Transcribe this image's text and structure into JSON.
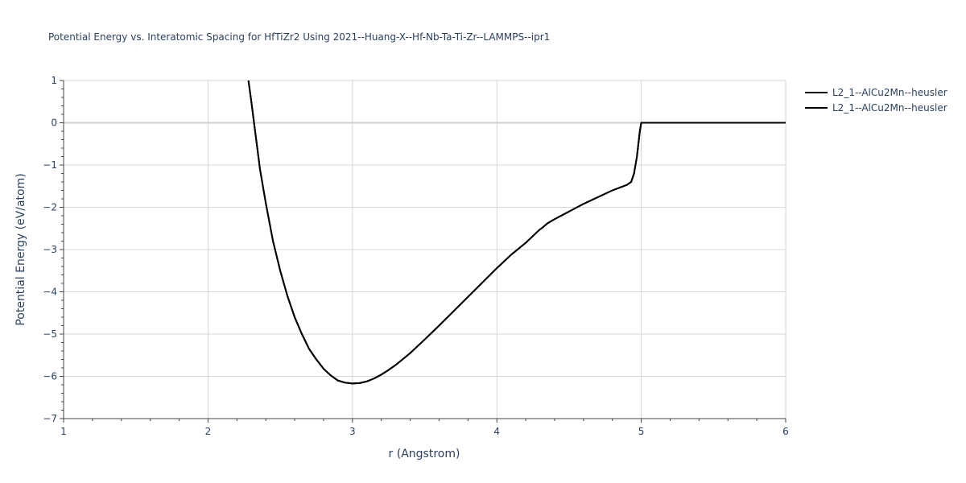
{
  "chart_data": {
    "type": "line",
    "title": "Potential Energy vs. Interatomic Spacing for HfTiZr2 Using 2021--Huang-X--Hf-Nb-Ta-Ti-Zr--LAMMPS--ipr1",
    "xlabel": "r (Angstrom)",
    "ylabel": "Potential Energy (eV/atom)",
    "xlim": [
      1,
      6
    ],
    "ylim": [
      -7,
      1
    ],
    "xticks": [
      1,
      2,
      3,
      4,
      5,
      6
    ],
    "yticks": [
      1,
      0,
      -1,
      -2,
      -3,
      -4,
      -5,
      -6,
      -7
    ],
    "ytick_labels": [
      "1",
      "0",
      "−1",
      "−2",
      "−3",
      "−4",
      "−5",
      "−6",
      "−7"
    ],
    "grid": true,
    "legend_position": "top-right",
    "series": [
      {
        "name": "L2_1--AlCu2Mn--heusler",
        "color": "#000000",
        "x": [
          2.28,
          2.3,
          2.33,
          2.36,
          2.4,
          2.45,
          2.5,
          2.55,
          2.6,
          2.65,
          2.7,
          2.75,
          2.8,
          2.85,
          2.9,
          2.95,
          3.0,
          3.05,
          3.1,
          3.15,
          3.2,
          3.25,
          3.3,
          3.35,
          3.4,
          3.5,
          3.6,
          3.7,
          3.8,
          3.9,
          4.0,
          4.1,
          4.2,
          4.25,
          4.28,
          4.3,
          4.32,
          4.35,
          4.4,
          4.5,
          4.6,
          4.7,
          4.8,
          4.9,
          4.93,
          4.95,
          4.97,
          4.99,
          5.0,
          5.5,
          6.0
        ],
        "y": [
          1.0,
          0.5,
          -0.3,
          -1.1,
          -1.9,
          -2.8,
          -3.5,
          -4.1,
          -4.6,
          -5.0,
          -5.35,
          -5.6,
          -5.82,
          -5.98,
          -6.1,
          -6.15,
          -6.17,
          -6.16,
          -6.12,
          -6.05,
          -5.96,
          -5.85,
          -5.73,
          -5.59,
          -5.45,
          -5.13,
          -4.8,
          -4.46,
          -4.12,
          -3.78,
          -3.44,
          -3.12,
          -2.84,
          -2.68,
          -2.58,
          -2.52,
          -2.47,
          -2.38,
          -2.28,
          -2.1,
          -1.92,
          -1.76,
          -1.6,
          -1.47,
          -1.4,
          -1.2,
          -0.8,
          -0.2,
          0.0,
          0.0,
          0.0
        ]
      },
      {
        "name": "L2_1--AlCu2Mn--heusler",
        "color": "#000000",
        "x": [
          2.28,
          2.3,
          2.33,
          2.36,
          2.4,
          2.45,
          2.5,
          2.55,
          2.6,
          2.65,
          2.7,
          2.75,
          2.8,
          2.85,
          2.9,
          2.95,
          3.0,
          3.05,
          3.1,
          3.15,
          3.2,
          3.25,
          3.3,
          3.35,
          3.4,
          3.5,
          3.6,
          3.7,
          3.8,
          3.9,
          4.0,
          4.1,
          4.2,
          4.25,
          4.28,
          4.3,
          4.32,
          4.35,
          4.4,
          4.5,
          4.6,
          4.7,
          4.8,
          4.9,
          4.93,
          4.95,
          4.97,
          4.99,
          5.0,
          5.5,
          6.0
        ],
        "y": [
          1.0,
          0.5,
          -0.3,
          -1.1,
          -1.9,
          -2.8,
          -3.5,
          -4.1,
          -4.6,
          -5.0,
          -5.35,
          -5.6,
          -5.82,
          -5.98,
          -6.1,
          -6.15,
          -6.17,
          -6.16,
          -6.12,
          -6.05,
          -5.96,
          -5.85,
          -5.73,
          -5.59,
          -5.45,
          -5.13,
          -4.8,
          -4.46,
          -4.12,
          -3.78,
          -3.44,
          -3.12,
          -2.84,
          -2.68,
          -2.58,
          -2.52,
          -2.47,
          -2.38,
          -2.28,
          -2.1,
          -1.92,
          -1.76,
          -1.6,
          -1.47,
          -1.4,
          -1.2,
          -0.8,
          -0.2,
          0.0,
          0.0,
          0.0
        ]
      }
    ]
  }
}
